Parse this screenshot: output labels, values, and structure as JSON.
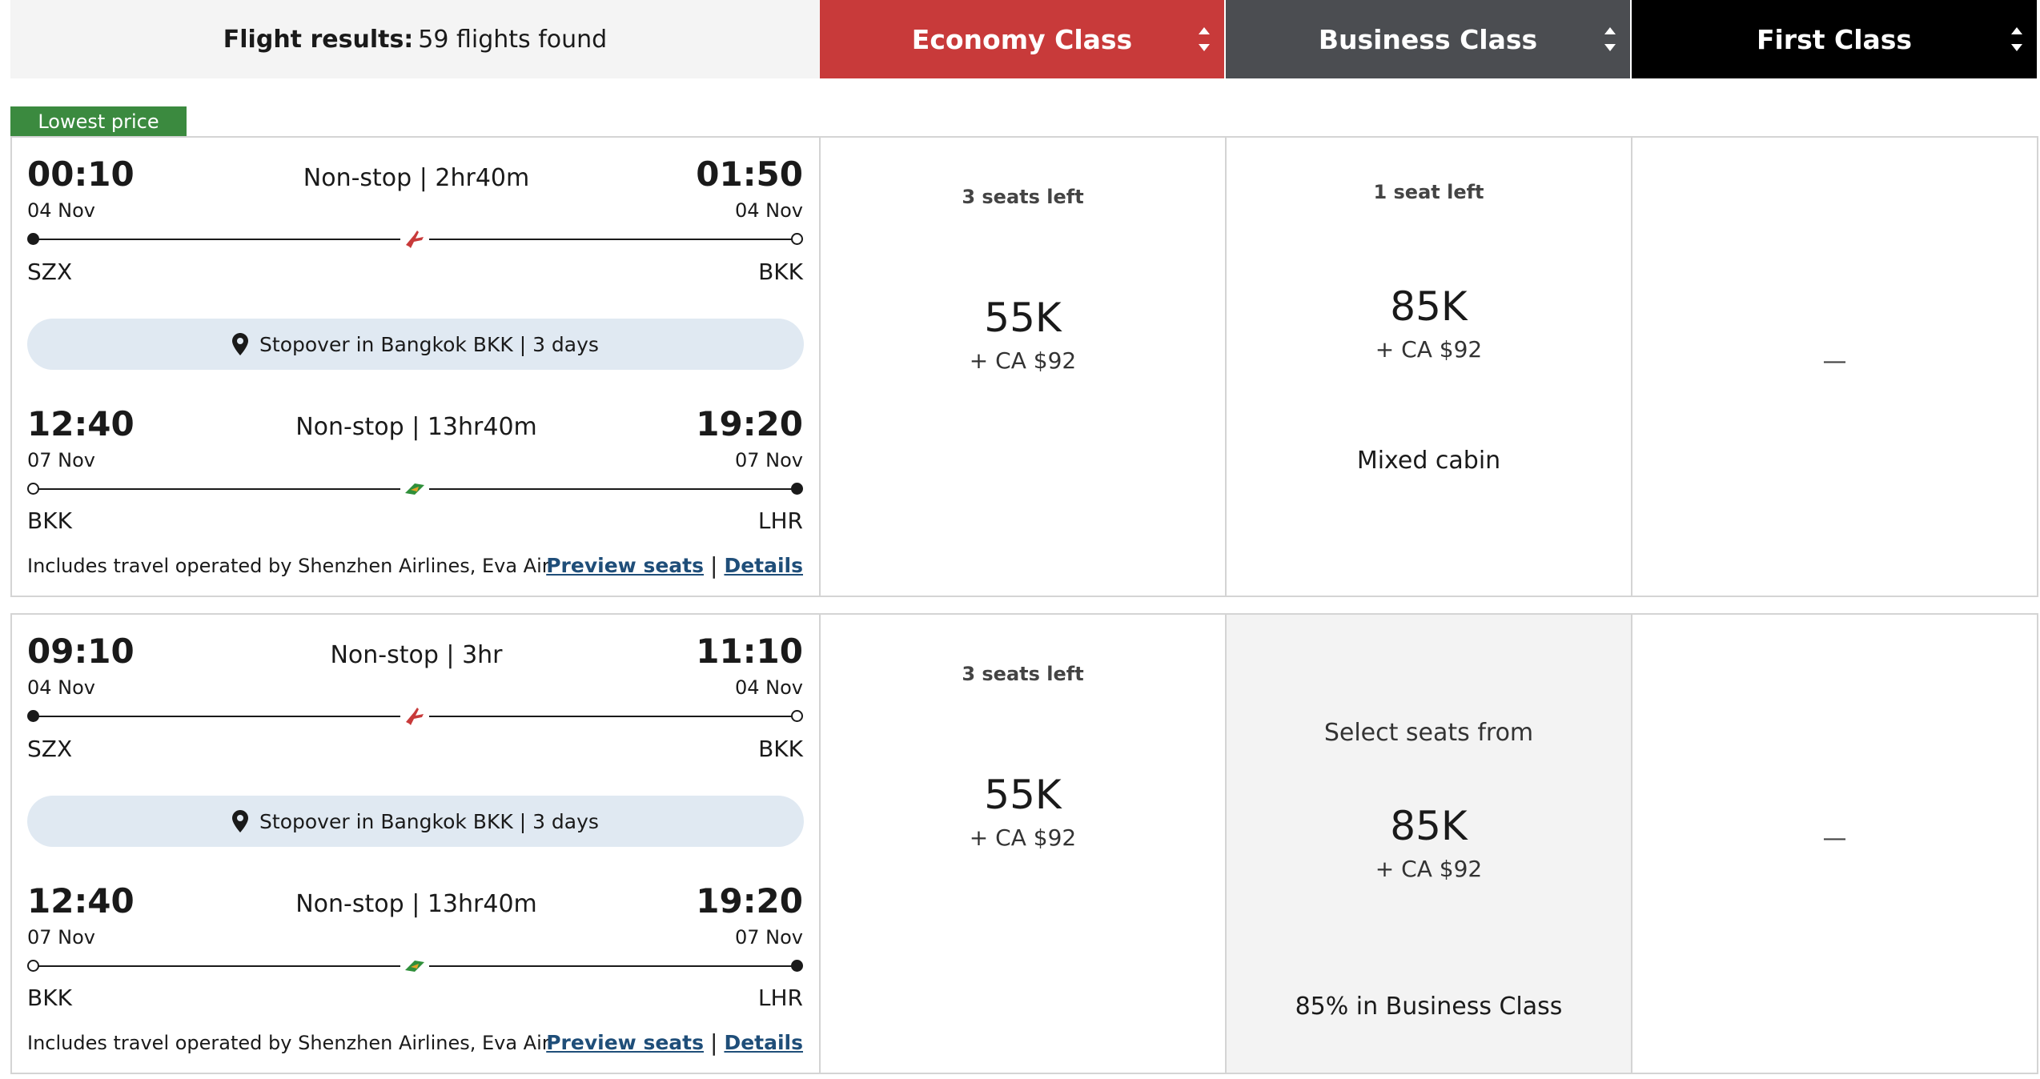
{
  "header": {
    "results_label": "Flight results:",
    "results_count": "59 flights found",
    "tabs": [
      {
        "label": "Economy Class",
        "color": "#c83a3a"
      },
      {
        "label": "Business Class",
        "color": "#4b4d51"
      },
      {
        "label": "First Class",
        "color": "#000000"
      }
    ]
  },
  "flights": [
    {
      "badge": "Lowest price",
      "seg1": {
        "dep_time": "00:10",
        "dep_date": "04 Nov",
        "duration": "Non-stop | 2hr40m",
        "arr_time": "01:50",
        "arr_date": "04 Nov",
        "from": "SZX",
        "to": "BKK",
        "airline_icon": "shenzhen-airlines-icon"
      },
      "stopover": "Stopover in Bangkok BKK | 3 days",
      "seg2": {
        "dep_time": "12:40",
        "dep_date": "07 Nov",
        "duration": "Non-stop | 13hr40m",
        "arr_time": "19:20",
        "arr_date": "07 Nov",
        "from": "BKK",
        "to": "LHR",
        "airline_icon": "eva-air-icon"
      },
      "operated_by": "Includes travel operated by Shenzhen Airlines, Eva Air",
      "preview_label": "Preview seats",
      "details_label": "Details",
      "economy": {
        "seats": "3 seats left",
        "miles": "55K",
        "tax": "+ CA $92"
      },
      "business": {
        "seats": "1 seat left",
        "miles": "85K",
        "tax": "+ CA $92",
        "note": "Mixed cabin"
      },
      "first": {
        "value": "—"
      }
    },
    {
      "seg1": {
        "dep_time": "09:10",
        "dep_date": "04 Nov",
        "duration": "Non-stop | 3hr",
        "arr_time": "11:10",
        "arr_date": "04 Nov",
        "from": "SZX",
        "to": "BKK",
        "airline_icon": "shenzhen-airlines-icon"
      },
      "stopover": "Stopover in Bangkok BKK | 3 days",
      "seg2": {
        "dep_time": "12:40",
        "dep_date": "07 Nov",
        "duration": "Non-stop | 13hr40m",
        "arr_time": "19:20",
        "arr_date": "07 Nov",
        "from": "BKK",
        "to": "LHR",
        "airline_icon": "eva-air-icon"
      },
      "operated_by": "Includes travel operated by Shenzhen Airlines, Eva Air",
      "preview_label": "Preview seats",
      "details_label": "Details",
      "economy": {
        "seats": "3 seats left",
        "miles": "55K",
        "tax": "+ CA $92"
      },
      "business": {
        "select_label": "Select seats from",
        "miles": "85K",
        "tax": "+ CA $92",
        "note": "85% in Business Class"
      },
      "first": {
        "value": "—"
      }
    }
  ]
}
